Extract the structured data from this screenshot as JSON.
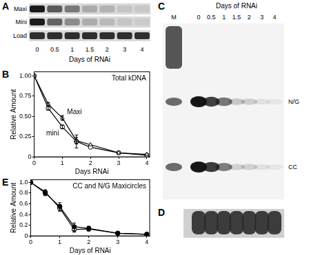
{
  "chart_data": [
    {
      "panel": "B",
      "type": "line",
      "title": "Total kDNA",
      "xlabel": "Days RNAi",
      "ylabel": "Relative Amount",
      "x": [
        0,
        0.5,
        1,
        1.5,
        2,
        3,
        4
      ],
      "xlim": [
        0,
        4.1
      ],
      "xticks": [
        0,
        1,
        2,
        3,
        4
      ],
      "ylim": [
        0,
        1.05
      ],
      "yticks": [
        0,
        0.25,
        {
          "value": 0.5,
          "label": "0.50"
        },
        0.75,
        {
          "value": 1,
          "label": "1.00"
        }
      ],
      "grid": false,
      "series": [
        {
          "name": "Maxi",
          "color": "#000000",
          "marker": "open_triangle",
          "values": [
            1,
            0.65,
            0.48,
            0.2,
            0.15,
            0.05,
            0.03
          ],
          "errors": [
            null,
            0.02,
            0.03,
            0.04,
            null,
            null,
            null
          ]
        },
        {
          "name": "mini",
          "color": "#000000",
          "marker": "open_circle",
          "values": [
            1,
            0.6,
            0.37,
            0.19,
            0.12,
            0.05,
            0.02
          ],
          "errors": [
            null,
            0.02,
            0.02,
            0.08,
            null,
            null,
            null
          ]
        }
      ]
    },
    {
      "panel": "E",
      "type": "line",
      "title": "CC and N/G Maxicircles",
      "xlabel": "Days of RNAi",
      "ylabel": "Relative Amount",
      "x": [
        0,
        0.5,
        1,
        1.5,
        2,
        3,
        4
      ],
      "xlim": [
        0,
        4.1
      ],
      "xticks": [
        0,
        1,
        2,
        3,
        4
      ],
      "ylim": [
        0,
        1.05
      ],
      "yticks": [
        0,
        0.2,
        0.4,
        0.6,
        0.8,
        {
          "value": 1,
          "label": "1.0"
        }
      ],
      "grid": false,
      "series": [
        {
          "color": "#000000",
          "marker": "circle",
          "values": [
            1,
            0.8,
            0.55,
            0.17,
            0.14,
            0.05,
            0.03
          ],
          "errors": [
            null,
            0.05,
            0.07,
            0.07,
            0.04,
            0.02,
            0.01
          ]
        },
        {
          "color": "#000000",
          "marker": "open_circle",
          "values": [
            1,
            0.82,
            0.52,
            0.12,
            0.13,
            0.05,
            0.03
          ],
          "errors": [
            null,
            0.04,
            0.06,
            0.05,
            0.04,
            0.02,
            0.01
          ]
        }
      ]
    }
  ],
  "blots": [
    {
      "panel": "A",
      "rows": [
        "Maxi",
        "Mini",
        "Load"
      ],
      "lanes": [
        "0",
        "0.5",
        "1",
        "1.5",
        "2",
        "3",
        "4"
      ],
      "xlabel": "Days of RNAi"
    },
    {
      "panel": "C",
      "title": "Days of RNAi",
      "lanes": [
        "M",
        "0",
        "0.5",
        "1",
        "1.5",
        "2",
        "3",
        "4"
      ],
      "bands": [
        "N/G",
        "CC"
      ]
    },
    {
      "panel": "D"
    }
  ]
}
